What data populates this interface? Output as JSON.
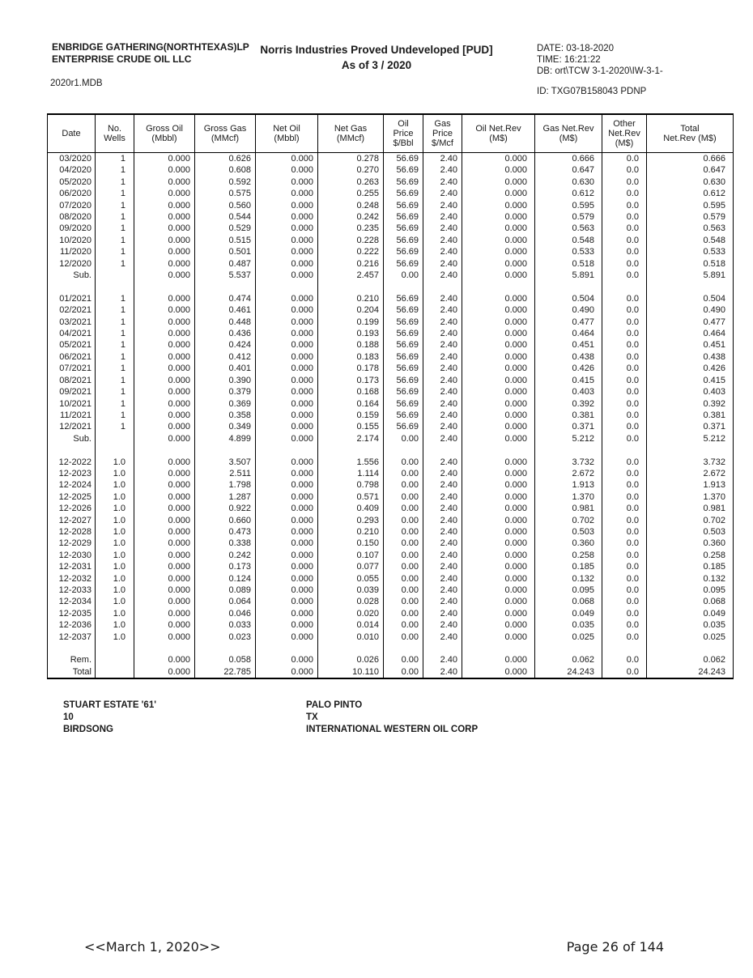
{
  "header": {
    "company_line1": "ENBRIDGE GATHERING(NORTHTEXAS)LP",
    "company_line2": "ENTERPRISE CRUDE OIL LLC",
    "file_name": "2020r1.MDB",
    "title_line1": "Norris Industries Proved Undeveloped [PUD]",
    "title_line2": "As of 3 / 2020",
    "date_line": "DATE: 03-18-2020",
    "time_line": "TIME: 16:21:22",
    "db_line": "DB: ort\\TCW 3-1-2020\\IW-3-1-",
    "id_line": "ID: TXG07B158043 PDNP"
  },
  "table": {
    "columns": [
      "Date",
      "No.\nWells",
      "Gross Oil\n(Mbbl)",
      "Gross Gas\n(MMcf)",
      "Net Oil\n(Mbbl)",
      "Net Gas\n(MMcf)",
      "Oil\nPrice\n$/Bbl",
      "Gas\nPrice\n$/Mcf",
      "Oil Net.Rev\n(M$)",
      "Gas Net.Rev\n(M$)",
      "Other\nNet.Rev\n(M$)",
      "Total\nNet.Rev (M$)"
    ],
    "rows": [
      [
        "03/2020",
        "1",
        "0.000",
        "0.626",
        "0.000",
        "0.278",
        "56.69",
        "2.40",
        "0.000",
        "0.666",
        "0.0",
        "0.666"
      ],
      [
        "04/2020",
        "1",
        "0.000",
        "0.608",
        "0.000",
        "0.270",
        "56.69",
        "2.40",
        "0.000",
        "0.647",
        "0.0",
        "0.647"
      ],
      [
        "05/2020",
        "1",
        "0.000",
        "0.592",
        "0.000",
        "0.263",
        "56.69",
        "2.40",
        "0.000",
        "0.630",
        "0.0",
        "0.630"
      ],
      [
        "06/2020",
        "1",
        "0.000",
        "0.575",
        "0.000",
        "0.255",
        "56.69",
        "2.40",
        "0.000",
        "0.612",
        "0.0",
        "0.612"
      ],
      [
        "07/2020",
        "1",
        "0.000",
        "0.560",
        "0.000",
        "0.248",
        "56.69",
        "2.40",
        "0.000",
        "0.595",
        "0.0",
        "0.595"
      ],
      [
        "08/2020",
        "1",
        "0.000",
        "0.544",
        "0.000",
        "0.242",
        "56.69",
        "2.40",
        "0.000",
        "0.579",
        "0.0",
        "0.579"
      ],
      [
        "09/2020",
        "1",
        "0.000",
        "0.529",
        "0.000",
        "0.235",
        "56.69",
        "2.40",
        "0.000",
        "0.563",
        "0.0",
        "0.563"
      ],
      [
        "10/2020",
        "1",
        "0.000",
        "0.515",
        "0.000",
        "0.228",
        "56.69",
        "2.40",
        "0.000",
        "0.548",
        "0.0",
        "0.548"
      ],
      [
        "11/2020",
        "1",
        "0.000",
        "0.501",
        "0.000",
        "0.222",
        "56.69",
        "2.40",
        "0.000",
        "0.533",
        "0.0",
        "0.533"
      ],
      [
        "12/2020",
        "1",
        "0.000",
        "0.487",
        "0.000",
        "0.216",
        "56.69",
        "2.40",
        "0.000",
        "0.518",
        "0.0",
        "0.518"
      ],
      [
        "Sub.",
        "",
        "0.000",
        "5.537",
        "0.000",
        "2.457",
        "0.00",
        "2.40",
        "0.000",
        "5.891",
        "0.0",
        "5.891"
      ],
      null,
      [
        "01/2021",
        "1",
        "0.000",
        "0.474",
        "0.000",
        "0.210",
        "56.69",
        "2.40",
        "0.000",
        "0.504",
        "0.0",
        "0.504"
      ],
      [
        "02/2021",
        "1",
        "0.000",
        "0.461",
        "0.000",
        "0.204",
        "56.69",
        "2.40",
        "0.000",
        "0.490",
        "0.0",
        "0.490"
      ],
      [
        "03/2021",
        "1",
        "0.000",
        "0.448",
        "0.000",
        "0.199",
        "56.69",
        "2.40",
        "0.000",
        "0.477",
        "0.0",
        "0.477"
      ],
      [
        "04/2021",
        "1",
        "0.000",
        "0.436",
        "0.000",
        "0.193",
        "56.69",
        "2.40",
        "0.000",
        "0.464",
        "0.0",
        "0.464"
      ],
      [
        "05/2021",
        "1",
        "0.000",
        "0.424",
        "0.000",
        "0.188",
        "56.69",
        "2.40",
        "0.000",
        "0.451",
        "0.0",
        "0.451"
      ],
      [
        "06/2021",
        "1",
        "0.000",
        "0.412",
        "0.000",
        "0.183",
        "56.69",
        "2.40",
        "0.000",
        "0.438",
        "0.0",
        "0.438"
      ],
      [
        "07/2021",
        "1",
        "0.000",
        "0.401",
        "0.000",
        "0.178",
        "56.69",
        "2.40",
        "0.000",
        "0.426",
        "0.0",
        "0.426"
      ],
      [
        "08/2021",
        "1",
        "0.000",
        "0.390",
        "0.000",
        "0.173",
        "56.69",
        "2.40",
        "0.000",
        "0.415",
        "0.0",
        "0.415"
      ],
      [
        "09/2021",
        "1",
        "0.000",
        "0.379",
        "0.000",
        "0.168",
        "56.69",
        "2.40",
        "0.000",
        "0.403",
        "0.0",
        "0.403"
      ],
      [
        "10/2021",
        "1",
        "0.000",
        "0.369",
        "0.000",
        "0.164",
        "56.69",
        "2.40",
        "0.000",
        "0.392",
        "0.0",
        "0.392"
      ],
      [
        "11/2021",
        "1",
        "0.000",
        "0.358",
        "0.000",
        "0.159",
        "56.69",
        "2.40",
        "0.000",
        "0.381",
        "0.0",
        "0.381"
      ],
      [
        "12/2021",
        "1",
        "0.000",
        "0.349",
        "0.000",
        "0.155",
        "56.69",
        "2.40",
        "0.000",
        "0.371",
        "0.0",
        "0.371"
      ],
      [
        "Sub.",
        "",
        "0.000",
        "4.899",
        "0.000",
        "2.174",
        "0.00",
        "2.40",
        "0.000",
        "5.212",
        "0.0",
        "5.212"
      ],
      null,
      [
        "12-2022",
        "1.0",
        "0.000",
        "3.507",
        "0.000",
        "1.556",
        "0.00",
        "2.40",
        "0.000",
        "3.732",
        "0.0",
        "3.732"
      ],
      [
        "12-2023",
        "1.0",
        "0.000",
        "2.511",
        "0.000",
        "1.114",
        "0.00",
        "2.40",
        "0.000",
        "2.672",
        "0.0",
        "2.672"
      ],
      [
        "12-2024",
        "1.0",
        "0.000",
        "1.798",
        "0.000",
        "0.798",
        "0.00",
        "2.40",
        "0.000",
        "1.913",
        "0.0",
        "1.913"
      ],
      [
        "12-2025",
        "1.0",
        "0.000",
        "1.287",
        "0.000",
        "0.571",
        "0.00",
        "2.40",
        "0.000",
        "1.370",
        "0.0",
        "1.370"
      ],
      [
        "12-2026",
        "1.0",
        "0.000",
        "0.922",
        "0.000",
        "0.409",
        "0.00",
        "2.40",
        "0.000",
        "0.981",
        "0.0",
        "0.981"
      ],
      [
        "12-2027",
        "1.0",
        "0.000",
        "0.660",
        "0.000",
        "0.293",
        "0.00",
        "2.40",
        "0.000",
        "0.702",
        "0.0",
        "0.702"
      ],
      [
        "12-2028",
        "1.0",
        "0.000",
        "0.473",
        "0.000",
        "0.210",
        "0.00",
        "2.40",
        "0.000",
        "0.503",
        "0.0",
        "0.503"
      ],
      [
        "12-2029",
        "1.0",
        "0.000",
        "0.338",
        "0.000",
        "0.150",
        "0.00",
        "2.40",
        "0.000",
        "0.360",
        "0.0",
        "0.360"
      ],
      [
        "12-2030",
        "1.0",
        "0.000",
        "0.242",
        "0.000",
        "0.107",
        "0.00",
        "2.40",
        "0.000",
        "0.258",
        "0.0",
        "0.258"
      ],
      [
        "12-2031",
        "1.0",
        "0.000",
        "0.173",
        "0.000",
        "0.077",
        "0.00",
        "2.40",
        "0.000",
        "0.185",
        "0.0",
        "0.185"
      ],
      [
        "12-2032",
        "1.0",
        "0.000",
        "0.124",
        "0.000",
        "0.055",
        "0.00",
        "2.40",
        "0.000",
        "0.132",
        "0.0",
        "0.132"
      ],
      [
        "12-2033",
        "1.0",
        "0.000",
        "0.089",
        "0.000",
        "0.039",
        "0.00",
        "2.40",
        "0.000",
        "0.095",
        "0.0",
        "0.095"
      ],
      [
        "12-2034",
        "1.0",
        "0.000",
        "0.064",
        "0.000",
        "0.028",
        "0.00",
        "2.40",
        "0.000",
        "0.068",
        "0.0",
        "0.068"
      ],
      [
        "12-2035",
        "1.0",
        "0.000",
        "0.046",
        "0.000",
        "0.020",
        "0.00",
        "2.40",
        "0.000",
        "0.049",
        "0.0",
        "0.049"
      ],
      [
        "12-2036",
        "1.0",
        "0.000",
        "0.033",
        "0.000",
        "0.014",
        "0.00",
        "2.40",
        "0.000",
        "0.035",
        "0.0",
        "0.035"
      ],
      [
        "12-2037",
        "1.0",
        "0.000",
        "0.023",
        "0.000",
        "0.010",
        "0.00",
        "2.40",
        "0.000",
        "0.025",
        "0.0",
        "0.025"
      ],
      null,
      [
        "Rem.",
        "",
        "0.000",
        "0.058",
        "0.000",
        "0.026",
        "0.00",
        "2.40",
        "0.000",
        "0.062",
        "0.0",
        "0.062"
      ],
      [
        "Total",
        "",
        "0.000",
        "22.785",
        "0.000",
        "10.110",
        "0.00",
        "2.40",
        "0.000",
        "24.243",
        "0.0",
        "24.243"
      ]
    ]
  },
  "well_info": {
    "lease": "STUART ESTATE '61'",
    "well_number": "10",
    "field": "BIRDSONG",
    "county": "PALO PINTO",
    "state": "TX",
    "operator": "INTERNATIONAL WESTERN OIL CORP"
  },
  "footer": {
    "effective_date": "<<March 1, 2020>>",
    "page_label": "Page 26 of 144"
  }
}
